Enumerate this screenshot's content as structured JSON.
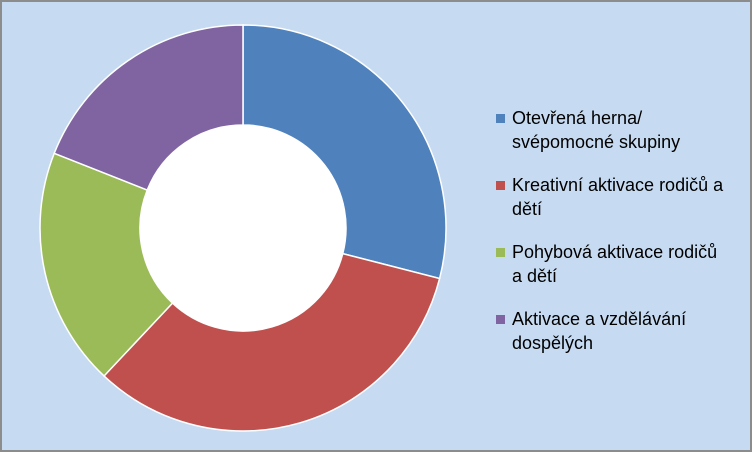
{
  "chart_data": {
    "type": "pie",
    "variant": "donut",
    "title": "",
    "categories": [
      "Otevřená herna/ svépomocné skupiny",
      "Kreativní aktivace rodičů a dětí",
      "Pohybová aktivace rodičů a dětí",
      "Aktivace a vzdělávání dospělých"
    ],
    "legend_lines": [
      [
        "Otevřená herna/",
        "svépomocné skupiny"
      ],
      [
        "Kreativní aktivace rodičů a",
        "dětí"
      ],
      [
        "Pohybová aktivace rodičů",
        "a dětí"
      ],
      [
        "Aktivace a vzdělávání",
        "dospělých"
      ]
    ],
    "values": [
      29,
      33,
      19,
      19
    ],
    "colors": [
      "#4f81bd",
      "#c0504d",
      "#9bbb59",
      "#8064a2"
    ],
    "background": "#c6daf1",
    "legend_position": "right"
  }
}
